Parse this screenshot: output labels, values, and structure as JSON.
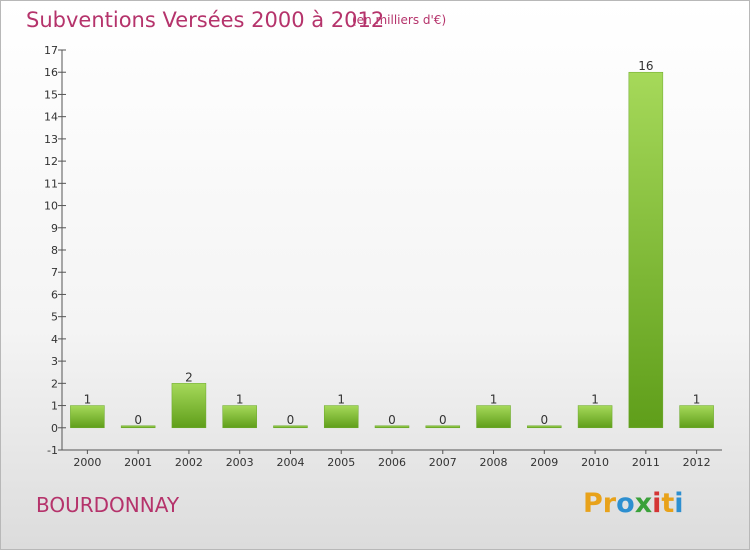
{
  "header": {
    "title": "Subventions Versées 2000 à 2012",
    "subtitle": "(en milliers d'€)"
  },
  "footer": {
    "commune": "BOURDONNAY",
    "logo_letters": [
      "P",
      "r",
      "o",
      "x",
      "i",
      "t",
      "i"
    ],
    "logo_colors": [
      "#e8a21a",
      "#e8a21a",
      "#2d8fd0",
      "#3aa13a",
      "#d43434",
      "#e8a21a",
      "#2d8fd0"
    ]
  },
  "colors": {
    "title": "#b5336b",
    "bar_light": "#a6d95a",
    "bar_dark": "#5f9e1a"
  },
  "chart_data": {
    "type": "bar",
    "title": "Subventions Versées 2000 à 2012",
    "subtitle": "(en milliers d'€)",
    "categories": [
      "2000",
      "2001",
      "2002",
      "2003",
      "2004",
      "2005",
      "2006",
      "2007",
      "2008",
      "2009",
      "2010",
      "2011",
      "2012"
    ],
    "values": [
      1,
      0,
      2,
      1,
      0,
      1,
      0,
      0,
      1,
      0,
      1,
      16,
      1
    ],
    "data_labels": [
      "1",
      "0",
      "2",
      "1",
      "0",
      "1",
      "0",
      "0",
      "1",
      "0",
      "1",
      "16",
      "1"
    ],
    "ylim": [
      -1,
      17
    ],
    "yticks": [
      -1,
      0,
      1,
      2,
      3,
      4,
      5,
      6,
      7,
      8,
      9,
      10,
      11,
      12,
      13,
      14,
      15,
      16,
      17
    ],
    "ytick_labels": [
      "-1",
      "0",
      "1",
      "2",
      "3",
      "4",
      "5",
      "6",
      "7",
      "8",
      "9",
      "10",
      "11",
      "12",
      "13",
      "14",
      "15",
      "16",
      "17"
    ],
    "xlabel": "",
    "ylabel": "",
    "grid": false,
    "legend": "none"
  }
}
